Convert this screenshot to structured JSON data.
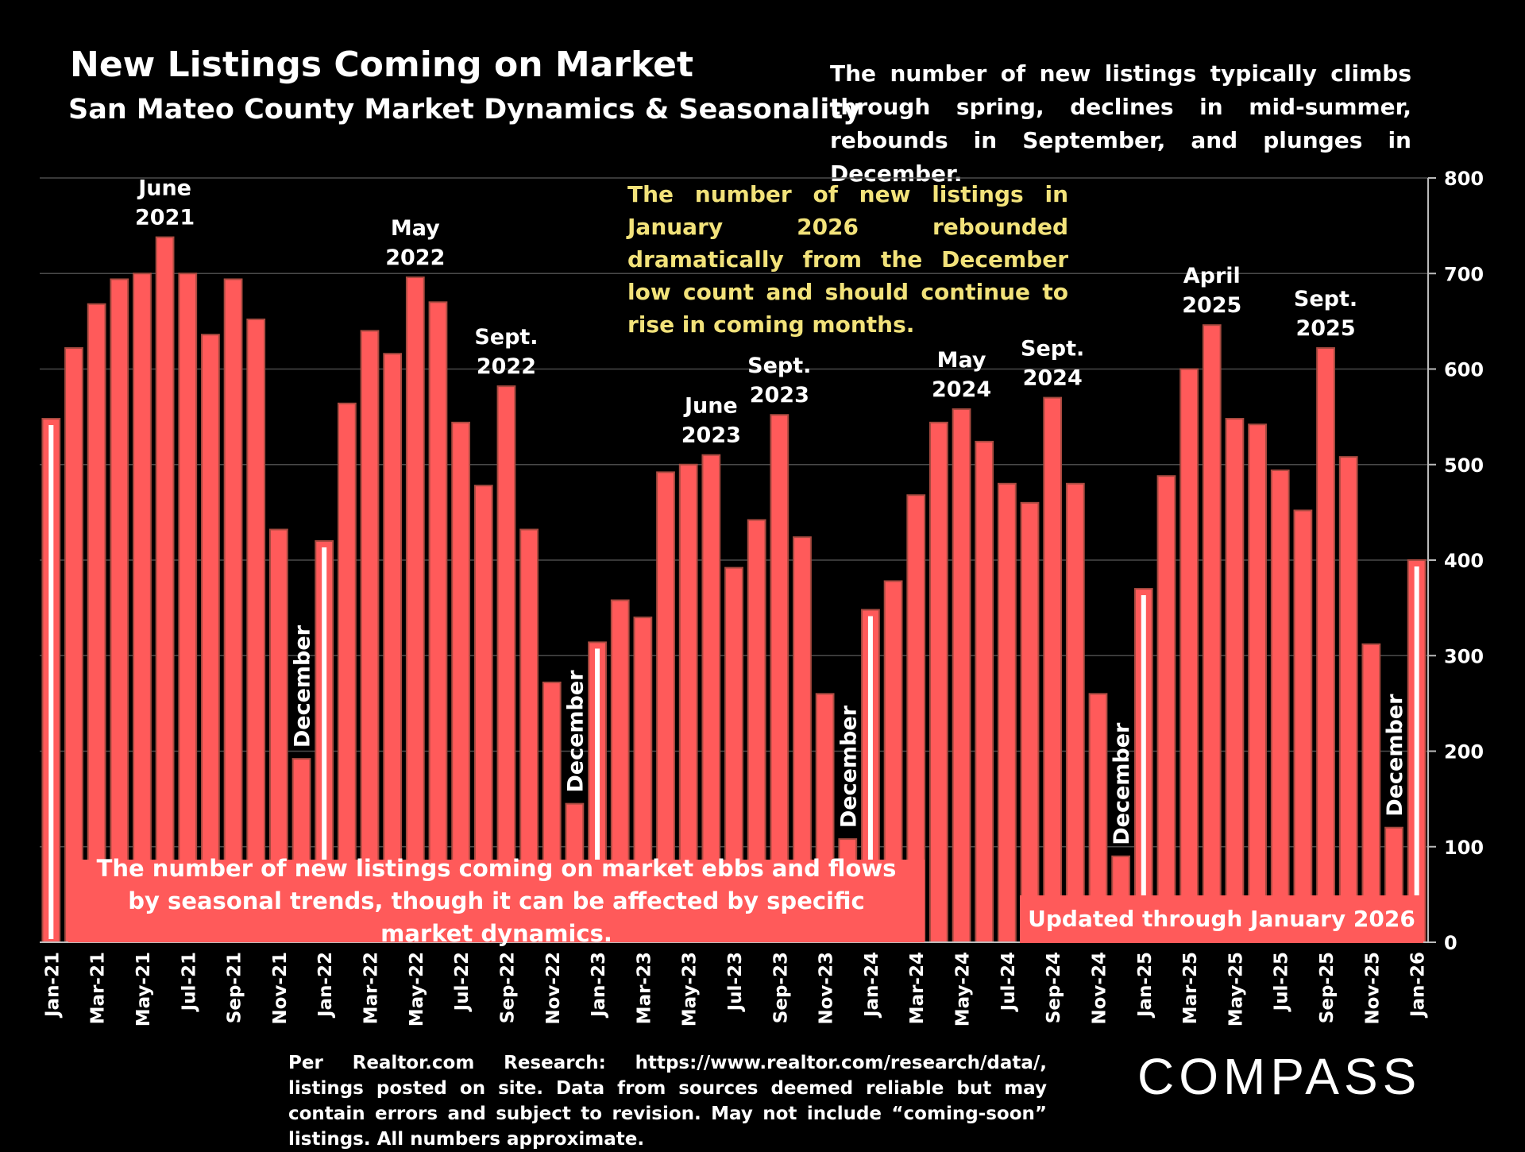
{
  "header": {
    "title": "New Listings Coming on Market",
    "subtitle": "San Mateo County Market Dynamics & Seasonality",
    "description": "The number of new listings typically climbs through spring, declines in mid-summer, rebounds in September, and plunges in December."
  },
  "callout": "The number of new listings in January 2026 rebounded dramatically from the December low count and should continue to rise in coming months.",
  "note_box": "The number of new listings coming on market ebbs and flows by seasonal trends, though it can be affected by specific market dynamics.",
  "updated_box": "Updated through January 2026",
  "source": "Per Realtor.com Research: https://www.realtor.com/research/data/, listings posted on site. Data from sources deemed reliable but may contain errors and subject to revision. May not include “coming-soon” listings. All numbers approximate.",
  "logo": "COMPASS",
  "colors": {
    "bar": "#ff5a5a",
    "bar_edge": "#a84a40",
    "january_marker": "#ffffff",
    "callout": "#f2e27a",
    "background": "#000000"
  },
  "chart_data": {
    "type": "bar",
    "categories": [
      "Jan-21",
      "Feb-21",
      "Mar-21",
      "Apr-21",
      "May-21",
      "Jun-21",
      "Jul-21",
      "Aug-21",
      "Sep-21",
      "Oct-21",
      "Nov-21",
      "Dec-21",
      "Jan-22",
      "Feb-22",
      "Mar-22",
      "Apr-22",
      "May-22",
      "Jun-22",
      "Jul-22",
      "Aug-22",
      "Sep-22",
      "Oct-22",
      "Nov-22",
      "Dec-22",
      "Jan-23",
      "Feb-23",
      "Mar-23",
      "Apr-23",
      "May-23",
      "Jun-23",
      "Jul-23",
      "Aug-23",
      "Sep-23",
      "Oct-23",
      "Nov-23",
      "Dec-23",
      "Jan-24",
      "Feb-24",
      "Mar-24",
      "Apr-24",
      "May-24",
      "Jun-24",
      "Jul-24",
      "Aug-24",
      "Sep-24",
      "Oct-24",
      "Nov-24",
      "Dec-24",
      "Jan-25",
      "Feb-25",
      "Mar-25",
      "Apr-25",
      "May-25",
      "Jun-25",
      "Jul-25",
      "Aug-25",
      "Sep-25",
      "Oct-25",
      "Nov-25",
      "Dec-25",
      "Jan-26"
    ],
    "x_tick_labels": [
      "Jan-21",
      "Mar-21",
      "May-21",
      "Jul-21",
      "Sep-21",
      "Nov-21",
      "Jan-22",
      "Mar-22",
      "May-22",
      "Jul-22",
      "Sep-22",
      "Nov-22",
      "Jan-23",
      "Mar-23",
      "May-23",
      "Jul-23",
      "Sep-23",
      "Nov-23",
      "Jan-24",
      "Mar-24",
      "May-24",
      "Jul-24",
      "Sep-24",
      "Nov-24",
      "Jan-25",
      "Mar-25",
      "May-25",
      "Jul-25",
      "Sep-25",
      "Nov-25",
      "Jan-26"
    ],
    "values": [
      548,
      622,
      668,
      694,
      700,
      738,
      700,
      636,
      694,
      652,
      432,
      192,
      420,
      564,
      640,
      616,
      696,
      670,
      544,
      478,
      582,
      432,
      272,
      145,
      314,
      358,
      340,
      492,
      500,
      510,
      392,
      442,
      552,
      424,
      260,
      108,
      348,
      378,
      468,
      544,
      558,
      524,
      480,
      460,
      570,
      480,
      260,
      90,
      370,
      488,
      600,
      646,
      548,
      542,
      494,
      452,
      622,
      508,
      312,
      120,
      400
    ],
    "january_markers": [
      "Jan-21",
      "Jan-22",
      "Jan-23",
      "Jan-24",
      "Jan-25",
      "Jan-26"
    ],
    "ylim": [
      0,
      800
    ],
    "y_ticks": [
      0,
      100,
      200,
      300,
      400,
      500,
      600,
      700,
      800
    ],
    "y_axis_side": "right",
    "grid": true,
    "annotations": [
      {
        "category": "Jun-21",
        "lines": [
          "June",
          "2021"
        ],
        "orientation": "horizontal"
      },
      {
        "category": "May-22",
        "lines": [
          "May",
          "2022"
        ],
        "orientation": "horizontal"
      },
      {
        "category": "Sep-22",
        "lines": [
          "Sept.",
          "2022"
        ],
        "orientation": "horizontal"
      },
      {
        "category": "Jun-23",
        "lines": [
          "June",
          "2023"
        ],
        "orientation": "horizontal"
      },
      {
        "category": "Sep-23",
        "lines": [
          "Sept.",
          "2023"
        ],
        "orientation": "horizontal"
      },
      {
        "category": "May-24",
        "lines": [
          "May",
          "2024"
        ],
        "orientation": "horizontal"
      },
      {
        "category": "Sep-24",
        "lines": [
          "Sept.",
          "2024"
        ],
        "orientation": "horizontal"
      },
      {
        "category": "Apr-25",
        "lines": [
          "April",
          "2025"
        ],
        "orientation": "horizontal"
      },
      {
        "category": "Sep-25",
        "lines": [
          "Sept.",
          "2025"
        ],
        "orientation": "horizontal"
      },
      {
        "category": "Dec-21",
        "lines": [
          "December"
        ],
        "orientation": "vertical"
      },
      {
        "category": "Dec-22",
        "lines": [
          "December"
        ],
        "orientation": "vertical"
      },
      {
        "category": "Dec-23",
        "lines": [
          "December"
        ],
        "orientation": "vertical"
      },
      {
        "category": "Dec-24",
        "lines": [
          "December"
        ],
        "orientation": "vertical"
      },
      {
        "category": "Dec-25",
        "lines": [
          "December"
        ],
        "orientation": "vertical"
      }
    ]
  }
}
